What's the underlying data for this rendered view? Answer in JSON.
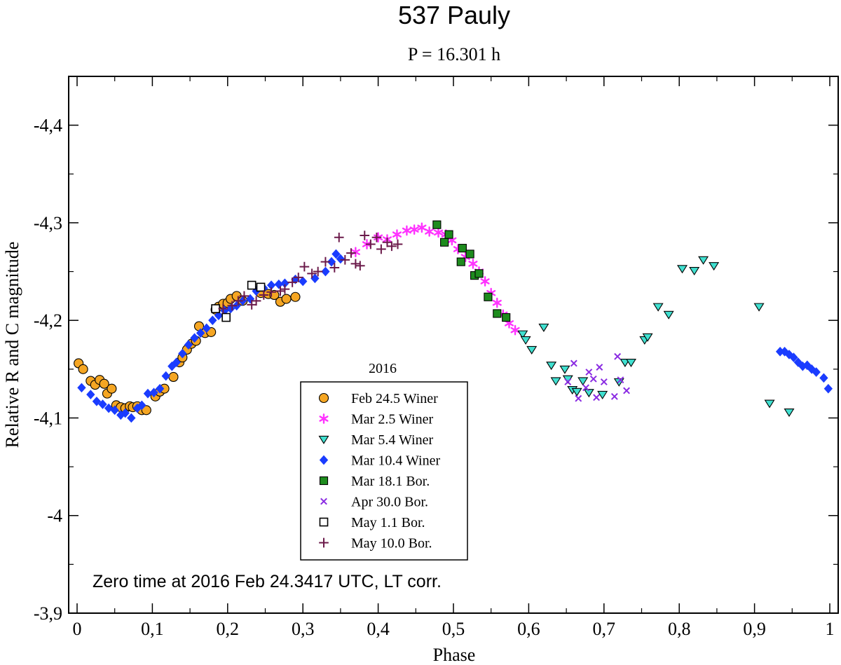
{
  "chart_data": {
    "type": "scatter",
    "title": "537 Pauly",
    "subtitle": "P = 16.301 h",
    "xlabel": "Phase",
    "ylabel": "Relative R and C magnitude",
    "xlim": [
      0,
      1
    ],
    "ylim": [
      -4.45,
      -3.9
    ],
    "y_inverted": true,
    "xticks": [
      "0",
      "0,1",
      "0,2",
      "0,3",
      "0,4",
      "0,5",
      "0,6",
      "0,7",
      "0,8",
      "0,9",
      "1"
    ],
    "xtick_values": [
      0,
      0.1,
      0.2,
      0.3,
      0.4,
      0.5,
      0.6,
      0.7,
      0.8,
      0.9,
      1.0
    ],
    "yticks": [
      "-4,4",
      "-4,3",
      "-4,2",
      "-4,1",
      "-4",
      "-3,9"
    ],
    "ytick_values": [
      -4.4,
      -4.3,
      -4.2,
      -4.1,
      -4.0,
      -3.9
    ],
    "legend_title": "2016",
    "annotation": "Zero time at 2016 Feb 24.3417 UTC,  LT corr.",
    "colors": {
      "feb245": "#f5a623",
      "mar25": "#ff33ff",
      "mar54": "#40e0d0",
      "mar104": "#1a3cff",
      "mar181": "#1e8c1e",
      "apr300": "#8a2be2",
      "may11": "#ffffff",
      "may100": "#6b1a4a"
    },
    "series": [
      {
        "name": "Feb 24.5 Winer",
        "marker": "circle",
        "color_key": "feb245",
        "points": [
          [
            0.002,
            -4.156
          ],
          [
            0.008,
            -4.15
          ],
          [
            0.018,
            -4.138
          ],
          [
            0.024,
            -4.134
          ],
          [
            0.03,
            -4.139
          ],
          [
            0.036,
            -4.135
          ],
          [
            0.04,
            -4.125
          ],
          [
            0.046,
            -4.13
          ],
          [
            0.052,
            -4.113
          ],
          [
            0.058,
            -4.111
          ],
          [
            0.064,
            -4.11
          ],
          [
            0.07,
            -4.112
          ],
          [
            0.074,
            -4.111
          ],
          [
            0.08,
            -4.112
          ],
          [
            0.086,
            -4.108
          ],
          [
            0.092,
            -4.108
          ],
          [
            0.104,
            -4.122
          ],
          [
            0.11,
            -4.127
          ],
          [
            0.116,
            -4.13
          ],
          [
            0.128,
            -4.142
          ],
          [
            0.136,
            -4.157
          ],
          [
            0.14,
            -4.162
          ],
          [
            0.146,
            -4.17
          ],
          [
            0.152,
            -4.176
          ],
          [
            0.158,
            -4.179
          ],
          [
            0.162,
            -4.194
          ],
          [
            0.17,
            -4.187
          ],
          [
            0.178,
            -4.188
          ],
          [
            0.184,
            -4.211
          ],
          [
            0.188,
            -4.214
          ],
          [
            0.194,
            -4.217
          ],
          [
            0.2,
            -4.218
          ],
          [
            0.204,
            -4.222
          ],
          [
            0.212,
            -4.225
          ],
          [
            0.22,
            -4.22
          ],
          [
            0.244,
            -4.228
          ],
          [
            0.254,
            -4.227
          ],
          [
            0.262,
            -4.226
          ],
          [
            0.27,
            -4.219
          ],
          [
            0.278,
            -4.222
          ],
          [
            0.29,
            -4.224
          ]
        ]
      },
      {
        "name": "Mar 2.5 Winer",
        "marker": "asterisk",
        "color_key": "mar25",
        "points": [
          [
            0.37,
            -4.27
          ],
          [
            0.385,
            -4.278
          ],
          [
            0.4,
            -4.285
          ],
          [
            0.412,
            -4.283
          ],
          [
            0.425,
            -4.288
          ],
          [
            0.438,
            -4.292
          ],
          [
            0.448,
            -4.293
          ],
          [
            0.458,
            -4.295
          ],
          [
            0.468,
            -4.291
          ],
          [
            0.48,
            -4.29
          ],
          [
            0.49,
            -4.288
          ],
          [
            0.498,
            -4.282
          ],
          [
            0.506,
            -4.273
          ],
          [
            0.516,
            -4.265
          ],
          [
            0.526,
            -4.258
          ],
          [
            0.534,
            -4.25
          ],
          [
            0.542,
            -4.24
          ],
          [
            0.55,
            -4.228
          ],
          [
            0.558,
            -4.218
          ],
          [
            0.566,
            -4.206
          ],
          [
            0.574,
            -4.197
          ],
          [
            0.582,
            -4.19
          ]
        ]
      },
      {
        "name": "Mar 5.4 Winer",
        "marker": "triangle-down",
        "color_key": "mar54",
        "points": [
          [
            0.592,
            -4.186
          ],
          [
            0.596,
            -4.18
          ],
          [
            0.604,
            -4.17
          ],
          [
            0.62,
            -4.193
          ],
          [
            0.63,
            -4.154
          ],
          [
            0.636,
            -4.138
          ],
          [
            0.648,
            -4.15
          ],
          [
            0.652,
            -4.14
          ],
          [
            0.658,
            -4.129
          ],
          [
            0.664,
            -4.127
          ],
          [
            0.672,
            -4.138
          ],
          [
            0.68,
            -4.126
          ],
          [
            0.698,
            -4.124
          ],
          [
            0.72,
            -4.137
          ],
          [
            0.728,
            -4.157
          ],
          [
            0.736,
            -4.157
          ],
          [
            0.754,
            -4.18
          ],
          [
            0.758,
            -4.183
          ],
          [
            0.772,
            -4.214
          ],
          [
            0.786,
            -4.206
          ],
          [
            0.804,
            -4.253
          ],
          [
            0.82,
            -4.251
          ],
          [
            0.832,
            -4.262
          ],
          [
            0.846,
            -4.256
          ],
          [
            0.906,
            -4.214
          ],
          [
            0.92,
            -4.115
          ],
          [
            0.946,
            -4.106
          ]
        ]
      },
      {
        "name": "Mar 10.4 Winer",
        "marker": "diamond",
        "color_key": "mar104",
        "points": [
          [
            0.006,
            -4.131
          ],
          [
            0.018,
            -4.124
          ],
          [
            0.026,
            -4.117
          ],
          [
            0.034,
            -4.114
          ],
          [
            0.042,
            -4.11
          ],
          [
            0.05,
            -4.108
          ],
          [
            0.058,
            -4.103
          ],
          [
            0.064,
            -4.105
          ],
          [
            0.072,
            -4.1
          ],
          [
            0.08,
            -4.11
          ],
          [
            0.086,
            -4.113
          ],
          [
            0.094,
            -4.125
          ],
          [
            0.102,
            -4.126
          ],
          [
            0.11,
            -4.13
          ],
          [
            0.118,
            -4.143
          ],
          [
            0.126,
            -4.153
          ],
          [
            0.132,
            -4.157
          ],
          [
            0.14,
            -4.166
          ],
          [
            0.148,
            -4.175
          ],
          [
            0.156,
            -4.182
          ],
          [
            0.164,
            -4.187
          ],
          [
            0.172,
            -4.192
          ],
          [
            0.18,
            -4.2
          ],
          [
            0.188,
            -4.205
          ],
          [
            0.196,
            -4.21
          ],
          [
            0.204,
            -4.212
          ],
          [
            0.212,
            -4.215
          ],
          [
            0.22,
            -4.22
          ],
          [
            0.23,
            -4.222
          ],
          [
            0.238,
            -4.23
          ],
          [
            0.248,
            -4.233
          ],
          [
            0.258,
            -4.236
          ],
          [
            0.268,
            -4.237
          ],
          [
            0.276,
            -4.238
          ],
          [
            0.29,
            -4.242
          ],
          [
            0.3,
            -4.24
          ],
          [
            0.316,
            -4.243
          ],
          [
            0.33,
            -4.25
          ],
          [
            0.338,
            -4.26
          ],
          [
            0.344,
            -4.268
          ],
          [
            0.35,
            -4.263
          ],
          [
            0.934,
            -4.168
          ],
          [
            0.94,
            -4.168
          ],
          [
            0.946,
            -4.165
          ],
          [
            0.952,
            -4.162
          ],
          [
            0.958,
            -4.157
          ],
          [
            0.964,
            -4.153
          ],
          [
            0.97,
            -4.154
          ],
          [
            0.976,
            -4.15
          ],
          [
            0.982,
            -4.147
          ],
          [
            0.992,
            -4.141
          ],
          [
            0.998,
            -4.13
          ]
        ]
      },
      {
        "name": "Mar 18.1 Bor.",
        "marker": "square",
        "color_key": "mar181",
        "points": [
          [
            0.478,
            -4.298
          ],
          [
            0.488,
            -4.28
          ],
          [
            0.494,
            -4.288
          ],
          [
            0.51,
            -4.26
          ],
          [
            0.512,
            -4.274
          ],
          [
            0.522,
            -4.268
          ],
          [
            0.528,
            -4.246
          ],
          [
            0.534,
            -4.248
          ],
          [
            0.546,
            -4.224
          ],
          [
            0.558,
            -4.207
          ],
          [
            0.57,
            -4.203
          ]
        ]
      },
      {
        "name": "Apr 30.0 Bor.",
        "marker": "x",
        "color_key": "apr300",
        "points": [
          [
            0.652,
            -4.137
          ],
          [
            0.66,
            -4.156
          ],
          [
            0.666,
            -4.12
          ],
          [
            0.676,
            -4.131
          ],
          [
            0.68,
            -4.147
          ],
          [
            0.686,
            -4.14
          ],
          [
            0.69,
            -4.121
          ],
          [
            0.694,
            -4.152
          ],
          [
            0.7,
            -4.137
          ],
          [
            0.714,
            -4.122
          ],
          [
            0.718,
            -4.163
          ],
          [
            0.722,
            -4.139
          ],
          [
            0.73,
            -4.128
          ]
        ]
      },
      {
        "name": "May 1.1 Bor.",
        "marker": "square-open",
        "color_key": "may11",
        "points": [
          [
            0.184,
            -4.212
          ],
          [
            0.198,
            -4.203
          ],
          [
            0.232,
            -4.236
          ],
          [
            0.244,
            -4.234
          ]
        ]
      },
      {
        "name": "May 10.0 Bor.",
        "marker": "plus",
        "color_key": "may100",
        "points": [
          [
            0.194,
            -4.212
          ],
          [
            0.206,
            -4.215
          ],
          [
            0.214,
            -4.22
          ],
          [
            0.222,
            -4.225
          ],
          [
            0.232,
            -4.216
          ],
          [
            0.238,
            -4.22
          ],
          [
            0.248,
            -4.226
          ],
          [
            0.258,
            -4.229
          ],
          [
            0.27,
            -4.23
          ],
          [
            0.276,
            -4.232
          ],
          [
            0.286,
            -4.239
          ],
          [
            0.294,
            -4.244
          ],
          [
            0.302,
            -4.255
          ],
          [
            0.312,
            -4.248
          ],
          [
            0.32,
            -4.25
          ],
          [
            0.33,
            -4.26
          ],
          [
            0.342,
            -4.254
          ],
          [
            0.348,
            -4.285
          ],
          [
            0.356,
            -4.262
          ],
          [
            0.364,
            -4.269
          ],
          [
            0.37,
            -4.258
          ],
          [
            0.376,
            -4.256
          ],
          [
            0.382,
            -4.287
          ],
          [
            0.39,
            -4.278
          ],
          [
            0.398,
            -4.285
          ],
          [
            0.404,
            -4.273
          ],
          [
            0.412,
            -4.28
          ],
          [
            0.418,
            -4.276
          ],
          [
            0.426,
            -4.278
          ]
        ]
      }
    ]
  }
}
